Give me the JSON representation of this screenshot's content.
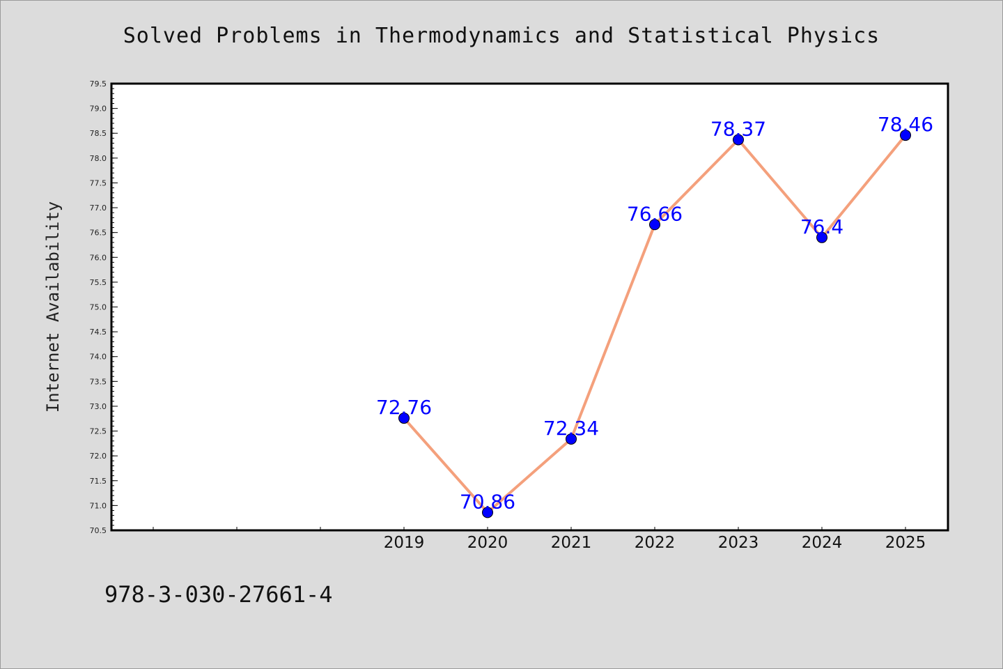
{
  "chart_data": {
    "type": "line",
    "title": "Solved Problems in Thermodynamics and Statistical Physics",
    "xlabel": "",
    "ylabel": "Internet Availability",
    "categories": [
      "",
      "",
      "",
      "2019",
      "2020",
      "2021",
      "2022",
      "2023",
      "2024",
      "2025"
    ],
    "series": [
      {
        "values": [
          null,
          null,
          null,
          72.76,
          70.86,
          72.34,
          76.66,
          78.37,
          76.4,
          78.46
        ],
        "labels": [
          null,
          null,
          null,
          "72.76",
          "70.86",
          "72.34",
          "76.66",
          "78.37",
          "76.4",
          "78.46"
        ]
      }
    ],
    "ylim": [
      70.5,
      79.5
    ],
    "yticks": [
      "70.5",
      "71.0",
      "71.5",
      "72.0",
      "72.5",
      "73.0",
      "73.5",
      "74.0",
      "74.5",
      "75.0",
      "75.5",
      "76.0",
      "76.5",
      "77.0",
      "77.5",
      "78.0",
      "78.5",
      "79.0",
      "79.5"
    ],
    "grid": false,
    "line_color": "#f4a07c",
    "marker_color": "#0000ff",
    "label_color": "#0000ff",
    "plot_background": "#ffffff"
  },
  "footer": {
    "isbn": "978-3-030-27661-4"
  }
}
